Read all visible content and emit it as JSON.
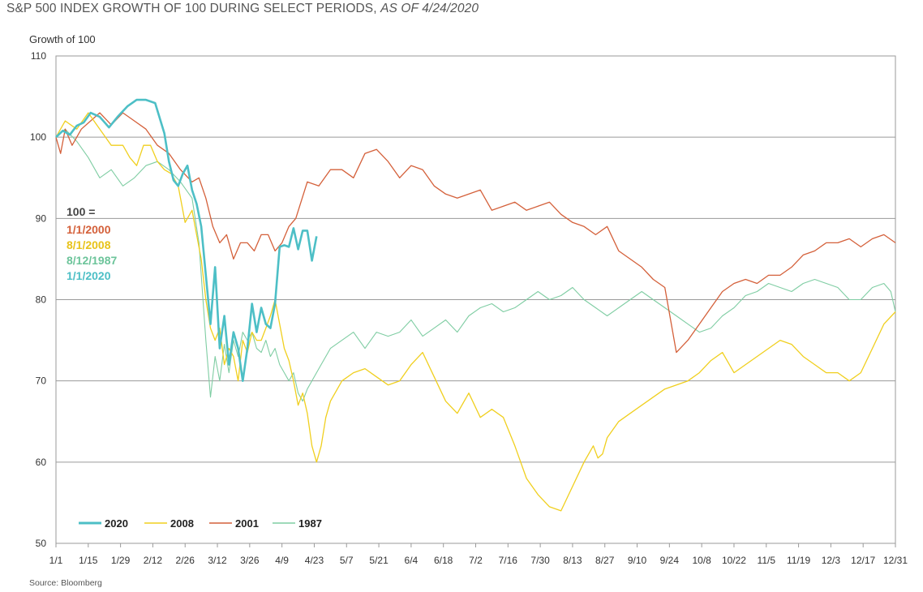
{
  "chart_data": {
    "type": "line",
    "title": "S&P 500 INDEX GROWTH OF 100 DURING SELECT PERIODS,",
    "title_suffix": "AS OF 4/24/2020",
    "ylabel": "Growth of 100",
    "source": "Source: Bloomberg",
    "ylim": [
      50,
      110
    ],
    "y_ticks": [
      50,
      60,
      70,
      80,
      90,
      100,
      110
    ],
    "x_ticks": [
      "1/1",
      "1/15",
      "1/29",
      "2/12",
      "2/26",
      "3/12",
      "3/26",
      "4/9",
      "4/23",
      "5/7",
      "5/21",
      "6/4",
      "6/18",
      "7/2",
      "7/16",
      "7/30",
      "8/13",
      "8/27",
      "9/10",
      "9/24",
      "10/8",
      "10/22",
      "11/5",
      "11/19",
      "12/3",
      "12/17",
      "12/31"
    ],
    "grid": true,
    "legend_position": "bottom-left",
    "annotation": {
      "header": "100 =",
      "lines": [
        {
          "text": "1/1/2000",
          "color": "#d4603a"
        },
        {
          "text": "8/1/2008",
          "color": "#e8c31a"
        },
        {
          "text": "8/12/1987",
          "color": "#6cc49a"
        },
        {
          "text": "1/1/2020",
          "color": "#4dbfc6"
        }
      ]
    },
    "series": [
      {
        "name": "2020",
        "color": "#4dbfc6",
        "width": 2.6,
        "x": [
          1,
          4,
          7,
          10,
          13,
          16,
          20,
          24,
          28,
          32,
          36,
          40,
          44,
          48,
          50,
          52,
          54,
          56,
          58,
          60,
          62,
          64,
          66,
          68,
          70,
          72,
          74,
          76,
          78,
          80,
          82,
          84,
          86,
          88,
          90,
          92,
          94,
          96,
          98,
          100,
          102,
          104,
          106,
          108,
          110,
          112,
          114
        ],
        "values": [
          100,
          100.8,
          100.3,
          101.4,
          101.8,
          103,
          102.5,
          101.2,
          102.6,
          103.8,
          104.6,
          104.6,
          104.2,
          100.5,
          97,
          94.7,
          94,
          95.5,
          96.5,
          93.5,
          91.8,
          89,
          83,
          77,
          84,
          74,
          78,
          72,
          76,
          74,
          70,
          74,
          79.5,
          76,
          79,
          77,
          76.5,
          79.5,
          86.5,
          86.7,
          86.5,
          88.8,
          86.2,
          88.5,
          88.5,
          84.8,
          87.8
        ]
      },
      {
        "name": "2008",
        "color": "#f0cf1e",
        "width": 1.3,
        "x": [
          1,
          5,
          10,
          15,
          20,
          25,
          30,
          33,
          36,
          39,
          42,
          45,
          48,
          51,
          54,
          57,
          60,
          62,
          64,
          66,
          68,
          70,
          72,
          74,
          76,
          78,
          80,
          82,
          84,
          86,
          88,
          90,
          92,
          94,
          96,
          98,
          100,
          102,
          104,
          106,
          108,
          110,
          112,
          114,
          116,
          118,
          120,
          125,
          130,
          135,
          140,
          145,
          150,
          155,
          160,
          165,
          170,
          175,
          180,
          185,
          190,
          195,
          200,
          205,
          210,
          215,
          220,
          225,
          230,
          232,
          234,
          236,
          238,
          240,
          245,
          250,
          255,
          260,
          265,
          270,
          275,
          280,
          285,
          290,
          295,
          300,
          305,
          310,
          315,
          320,
          325,
          330,
          335,
          340,
          345,
          350,
          355,
          360,
          365
        ],
        "values": [
          100,
          102,
          101,
          103,
          101,
          99,
          99,
          97.5,
          96.5,
          99,
          99,
          97,
          96,
          95.5,
          94,
          89.5,
          91,
          88,
          85,
          80,
          76.5,
          75,
          76.5,
          72,
          74,
          73,
          70,
          75,
          73.5,
          76,
          75,
          75,
          76.5,
          78,
          80,
          77,
          74,
          72.5,
          70,
          67,
          68.5,
          66,
          62,
          60,
          62,
          65.5,
          67.5,
          70,
          71,
          71.5,
          70.5,
          69.5,
          70,
          72,
          73.5,
          70.5,
          67.5,
          66,
          68.5,
          65.5,
          66.5,
          65.5,
          62,
          58,
          56,
          54.5,
          54,
          57,
          60,
          61,
          62,
          60.5,
          61,
          63,
          65,
          66,
          67,
          68,
          69,
          69.5,
          70,
          71,
          72.5,
          73.5,
          71,
          72,
          73,
          74,
          75,
          74.5,
          73,
          72,
          71,
          71,
          70,
          71,
          74,
          77,
          78.5
        ]
      },
      {
        "name": "2001",
        "color": "#d4603a",
        "width": 1.3,
        "x": [
          1,
          3,
          5,
          8,
          12,
          16,
          20,
          25,
          30,
          35,
          40,
          45,
          50,
          55,
          60,
          63,
          66,
          69,
          72,
          75,
          78,
          81,
          84,
          87,
          90,
          93,
          96,
          99,
          102,
          105,
          110,
          115,
          120,
          125,
          130,
          135,
          140,
          145,
          150,
          155,
          160,
          165,
          170,
          175,
          180,
          185,
          190,
          195,
          200,
          205,
          210,
          215,
          220,
          225,
          230,
          235,
          240,
          245,
          250,
          255,
          260,
          265,
          270,
          275,
          280,
          285,
          290,
          295,
          300,
          305,
          310,
          315,
          320,
          325,
          330,
          335,
          340,
          345,
          350,
          355,
          360,
          365
        ],
        "values": [
          100,
          98,
          101,
          99,
          101,
          102,
          103,
          101.5,
          103,
          102,
          101,
          99,
          98,
          96,
          94.5,
          95,
          92.5,
          89,
          87,
          88,
          85,
          87,
          87,
          86,
          88,
          88,
          86,
          87,
          89,
          90,
          94.5,
          94,
          96,
          96,
          95,
          98,
          98.5,
          97,
          95,
          96.5,
          96,
          94,
          93,
          92.5,
          93,
          93.5,
          91,
          91.5,
          92,
          91,
          91.5,
          92,
          90.5,
          89.5,
          89,
          88,
          89,
          86,
          85,
          84,
          82.5,
          81.5,
          73.5,
          75,
          77,
          79,
          81,
          82,
          82.5,
          82,
          83,
          83,
          84,
          85.5,
          86,
          87,
          87,
          87.5,
          86.5,
          87.5,
          88,
          87
        ]
      },
      {
        "name": "1987",
        "color": "#7fcda3",
        "width": 1.1,
        "x": [
          1,
          5,
          10,
          15,
          20,
          25,
          30,
          35,
          40,
          45,
          50,
          55,
          60,
          63,
          66,
          68,
          70,
          72,
          74,
          76,
          78,
          80,
          82,
          84,
          86,
          88,
          90,
          92,
          94,
          96,
          98,
          100,
          102,
          104,
          106,
          108,
          110,
          115,
          120,
          125,
          130,
          135,
          140,
          145,
          150,
          155,
          160,
          165,
          170,
          175,
          180,
          185,
          190,
          195,
          200,
          205,
          210,
          215,
          220,
          225,
          230,
          235,
          240,
          245,
          250,
          255,
          260,
          265,
          270,
          275,
          280,
          285,
          290,
          295,
          300,
          305,
          310,
          315,
          320,
          325,
          330,
          335,
          340,
          345,
          350,
          355,
          360,
          363,
          365
        ],
        "values": [
          100,
          101,
          99.5,
          97.5,
          95,
          96,
          94,
          95,
          96.5,
          97,
          96,
          94.5,
          92.5,
          87,
          75,
          68,
          73,
          70,
          74.5,
          71,
          75,
          73,
          76,
          75,
          76,
          74,
          73.5,
          75,
          73,
          74,
          72,
          71,
          70,
          71,
          68.5,
          67.5,
          69,
          71.5,
          74,
          75,
          76,
          74,
          76,
          75.5,
          76,
          77.5,
          75.5,
          76.5,
          77.5,
          76,
          78,
          79,
          79.5,
          78.5,
          79,
          80,
          81,
          80,
          80.5,
          81.5,
          80,
          79,
          78,
          79,
          80,
          81,
          80,
          79,
          78,
          77,
          76,
          76.5,
          78,
          79,
          80.5,
          81,
          82,
          81.5,
          81,
          82,
          82.5,
          82,
          81.5,
          80,
          80,
          81.5,
          82,
          81,
          78.5
        ]
      }
    ]
  }
}
